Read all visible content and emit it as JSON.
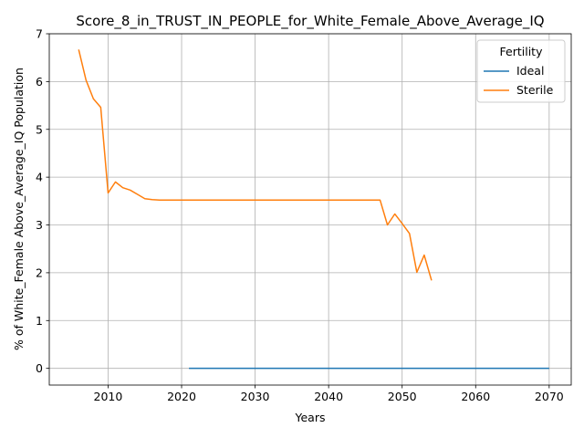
{
  "chart_data": {
    "type": "line",
    "title": "Score_8_in_TRUST_IN_PEOPLE_for_White_Female_Above_Average_IQ",
    "xlabel": "Years",
    "ylabel": "% of White_Female Above_Average_IQ Population",
    "xlim": [
      2002,
      2073
    ],
    "ylim": [
      -0.35,
      7
    ],
    "xticks": [
      2010,
      2020,
      2030,
      2040,
      2050,
      2060,
      2070
    ],
    "yticks": [
      0,
      1,
      2,
      3,
      4,
      5,
      6,
      7
    ],
    "grid": true,
    "legend": {
      "title": "Fertility",
      "placement": "top-right"
    },
    "series": [
      {
        "name": "Ideal",
        "color": "#1f77b4",
        "x": [
          2021,
          2025,
          2030,
          2035,
          2040,
          2045,
          2050,
          2055,
          2060,
          2065,
          2070
        ],
        "y": [
          0,
          0,
          0,
          0,
          0,
          0,
          0,
          0,
          0,
          0,
          0
        ]
      },
      {
        "name": "Sterile",
        "color": "#ff7f0e",
        "x": [
          2006,
          2007,
          2008,
          2009,
          2010,
          2011,
          2012,
          2013,
          2014,
          2015,
          2016,
          2017,
          2020,
          2025,
          2030,
          2035,
          2040,
          2045,
          2047,
          2048,
          2049,
          2050,
          2051,
          2052,
          2053,
          2054
        ],
        "y": [
          6.67,
          6.03,
          5.64,
          5.46,
          3.67,
          3.9,
          3.78,
          3.73,
          3.64,
          3.55,
          3.53,
          3.52,
          3.52,
          3.52,
          3.52,
          3.52,
          3.52,
          3.52,
          3.52,
          3.0,
          3.23,
          3.03,
          2.82,
          2.01,
          2.37,
          1.84
        ]
      }
    ]
  }
}
